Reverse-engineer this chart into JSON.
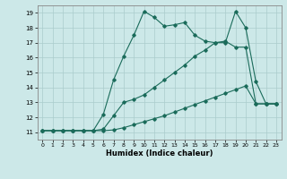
{
  "xlabel": "Humidex (Indice chaleur)",
  "background_color": "#cce8e8",
  "grid_color": "#aacccc",
  "line_color": "#1a6b5a",
  "xlim": [
    -0.5,
    23.5
  ],
  "ylim": [
    10.5,
    19.5
  ],
  "xticks": [
    0,
    1,
    2,
    3,
    4,
    5,
    6,
    7,
    8,
    9,
    10,
    11,
    12,
    13,
    14,
    15,
    16,
    17,
    18,
    19,
    20,
    21,
    22,
    23
  ],
  "yticks": [
    11,
    12,
    13,
    14,
    15,
    16,
    17,
    18,
    19
  ],
  "line1_x": [
    0,
    1,
    2,
    3,
    4,
    5,
    6,
    7,
    8,
    9,
    10,
    11,
    12,
    13,
    14,
    15,
    16,
    17,
    18,
    19,
    20,
    21,
    22,
    23
  ],
  "line1_y": [
    11.1,
    11.1,
    11.1,
    11.1,
    11.1,
    11.1,
    11.1,
    11.15,
    11.3,
    11.5,
    11.7,
    11.9,
    12.1,
    12.35,
    12.6,
    12.85,
    13.1,
    13.35,
    13.6,
    13.85,
    14.1,
    12.9,
    12.9,
    12.9
  ],
  "line2_x": [
    0,
    1,
    2,
    3,
    4,
    5,
    6,
    7,
    8,
    9,
    10,
    11,
    12,
    13,
    14,
    15,
    16,
    17,
    18,
    19,
    20,
    21,
    22,
    23
  ],
  "line2_y": [
    11.1,
    11.1,
    11.1,
    11.1,
    11.1,
    11.1,
    12.2,
    14.5,
    16.1,
    17.5,
    19.1,
    18.7,
    18.1,
    18.2,
    18.35,
    17.5,
    17.1,
    17.0,
    17.0,
    19.1,
    18.0,
    14.4,
    12.9,
    12.9
  ],
  "line3_x": [
    0,
    1,
    2,
    3,
    4,
    5,
    6,
    7,
    8,
    9,
    10,
    11,
    12,
    13,
    14,
    15,
    16,
    17,
    18,
    19,
    20,
    21,
    22,
    23
  ],
  "line3_y": [
    11.1,
    11.1,
    11.1,
    11.1,
    11.1,
    11.1,
    11.2,
    12.1,
    13.0,
    13.2,
    13.5,
    14.0,
    14.5,
    15.0,
    15.5,
    16.1,
    16.5,
    17.0,
    17.1,
    16.7,
    16.7,
    12.9,
    12.9,
    12.9
  ]
}
